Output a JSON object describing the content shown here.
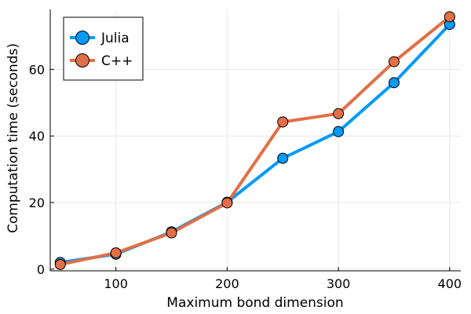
{
  "chart_data": {
    "type": "line",
    "xlabel": "Maximum bond dimension",
    "ylabel": "Computation time (seconds)",
    "x": [
      50,
      100,
      150,
      200,
      250,
      300,
      350,
      400
    ],
    "xlim": [
      41,
      410
    ],
    "ylim": [
      -0.5,
      78
    ],
    "xticks": [
      100,
      200,
      300,
      400
    ],
    "yticks": [
      0,
      20,
      40,
      60
    ],
    "grid": true,
    "legend_position": "top-left",
    "series": [
      {
        "name": "Julia",
        "color": "#009af9",
        "values": [
          2.0,
          4.5,
          11.2,
          20.1,
          33.3,
          41.3,
          56.0,
          73.5
        ]
      },
      {
        "name": "C++",
        "color": "#e26f46",
        "values": [
          1.4,
          4.9,
          10.9,
          19.9,
          44.2,
          46.7,
          62.3,
          75.8
        ]
      }
    ]
  }
}
